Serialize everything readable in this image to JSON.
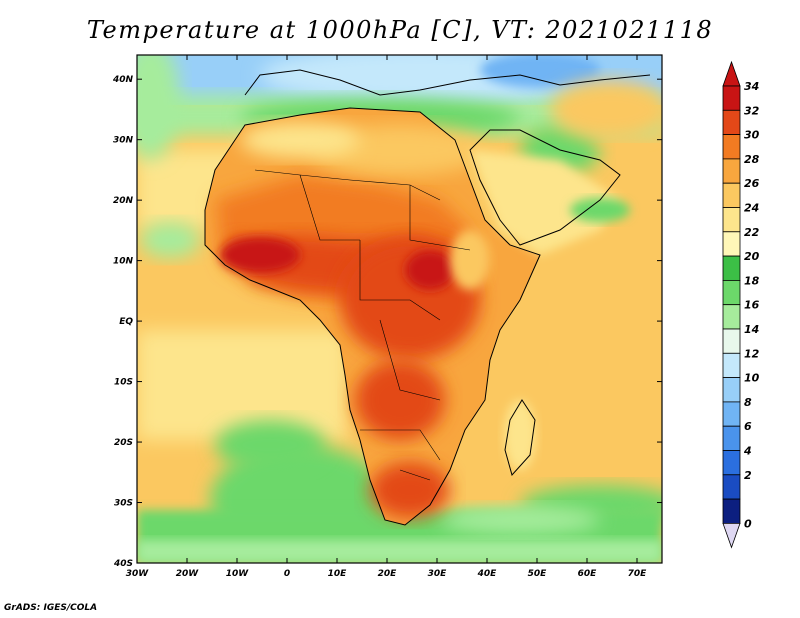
{
  "title": "Temperature at 1000hPa [C], VT: 2021021118",
  "credit": "GrADS: IGES/COLA",
  "map": {
    "lat_labels": [
      "40N",
      "30N",
      "20N",
      "10N",
      "EQ",
      "10S",
      "20S",
      "30S",
      "40S"
    ],
    "lon_labels": [
      "30W",
      "20W",
      "10W",
      "0",
      "10E",
      "20E",
      "30E",
      "40E",
      "50E",
      "60E",
      "70E"
    ],
    "extent": {
      "lon_min": -30,
      "lon_max": 75,
      "lat_min": -40,
      "lat_max": 44
    }
  },
  "colorbar": {
    "labels": [
      "34",
      "32",
      "30",
      "28",
      "26",
      "24",
      "22",
      "20",
      "18",
      "16",
      "14",
      "12",
      "10",
      "8",
      "6",
      "4",
      "2",
      "0"
    ],
    "levels_ascending": [
      0,
      2,
      4,
      6,
      8,
      10,
      12,
      14,
      16,
      18,
      20,
      22,
      24,
      26,
      28,
      30,
      32,
      34
    ],
    "colors": [
      "#0c1f80",
      "#1a4cc2",
      "#2b6fdf",
      "#4a93ec",
      "#70b4f4",
      "#98cff8",
      "#c4e8fb",
      "#e8f8ec",
      "#a6ec9c",
      "#6cd86a",
      "#3cbf46",
      "#fff7b8",
      "#fde58c",
      "#fbc860",
      "#f8a63e",
      "#f27b22",
      "#e34818",
      "#c81414"
    ],
    "over_color": "#c81414",
    "under_color": "#dfd8f3"
  }
}
